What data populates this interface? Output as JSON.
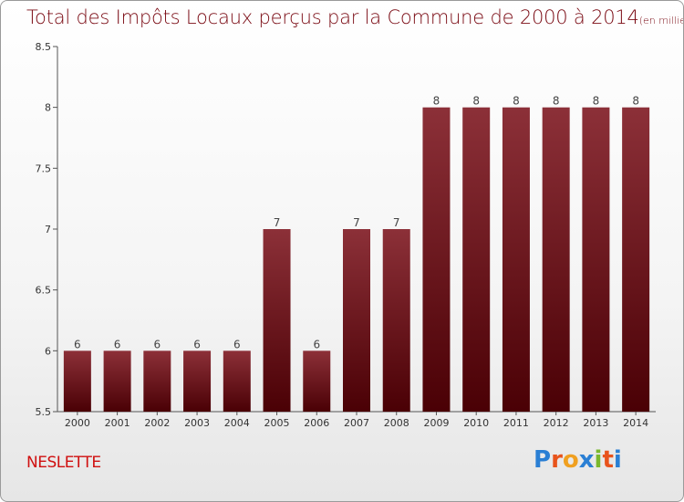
{
  "title": "Total des Impôts Locaux perçus par la Commune de 2000 à 2014",
  "subtitle": "(en milliers d'€)",
  "commune": "NESLETTE",
  "logo": {
    "letters": [
      "P",
      "r",
      "o",
      "x",
      "i",
      "t",
      "i"
    ],
    "colors": [
      "#2a7fd4",
      "#e8541c",
      "#f0a020",
      "#2a7fd4",
      "#7ab82e",
      "#e8541c",
      "#2a7fd4"
    ]
  },
  "colors": {
    "bar_top": "#8c3038",
    "bar_bottom": "#4a0005",
    "title": "#7a0a13",
    "commune": "#d01010"
  },
  "chart_data": {
    "type": "bar",
    "title": "Total des Impôts Locaux perçus par la Commune de 2000 à 2014",
    "xlabel": "",
    "ylabel": "",
    "categories": [
      "2000",
      "2001",
      "2002",
      "2003",
      "2004",
      "2005",
      "2006",
      "2007",
      "2008",
      "2009",
      "2010",
      "2011",
      "2012",
      "2013",
      "2014"
    ],
    "values": [
      6,
      6,
      6,
      6,
      6,
      7,
      6,
      7,
      7,
      8,
      8,
      8,
      8,
      8,
      8
    ],
    "data_labels": [
      "6",
      "6",
      "6",
      "6",
      "6",
      "7",
      "6",
      "7",
      "7",
      "8",
      "8",
      "8",
      "8",
      "8",
      "8"
    ],
    "ylim": [
      5.5,
      8.5
    ],
    "yticks": [
      "5.5",
      "6",
      "6.5",
      "7",
      "7.5",
      "8",
      "8.5"
    ],
    "grid": false
  }
}
